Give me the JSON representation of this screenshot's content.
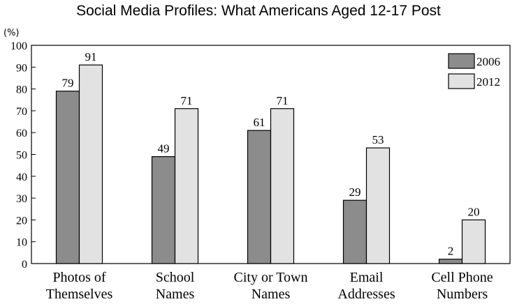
{
  "chart_data": {
    "type": "bar",
    "title": "Social Media Profiles: What Americans Aged 12-17 Post",
    "unit_label": "(%)",
    "categories": [
      [
        "Photos of",
        "Themselves"
      ],
      [
        "School",
        "Names"
      ],
      [
        "City or Town",
        "Names"
      ],
      [
        "Email",
        "Addresses"
      ],
      [
        "Cell Phone",
        "Numbers"
      ]
    ],
    "series": [
      {
        "name": "2006",
        "color": "#8c8c8c",
        "values": [
          79,
          49,
          61,
          29,
          2
        ]
      },
      {
        "name": "2012",
        "color": "#e2e2e2",
        "values": [
          91,
          71,
          71,
          53,
          20
        ]
      }
    ],
    "ylim": [
      0,
      100
    ],
    "yticks": [
      0,
      10,
      20,
      30,
      40,
      50,
      60,
      70,
      80,
      90,
      100
    ],
    "grid": false,
    "legend_position": "top-right"
  }
}
